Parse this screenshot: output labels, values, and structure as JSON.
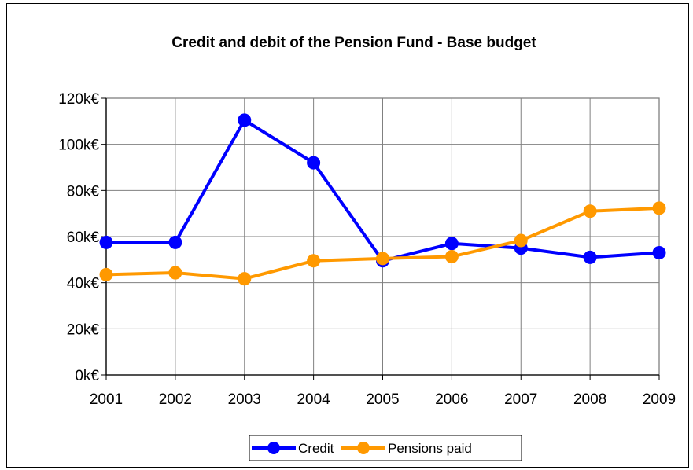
{
  "chart_data": {
    "type": "line",
    "title": "Credit and debit of the Pension Fund - Base budget",
    "xlabel": "",
    "ylabel": "",
    "categories": [
      "2001",
      "2002",
      "2003",
      "2004",
      "2005",
      "2006",
      "2007",
      "2008",
      "2009"
    ],
    "y_tick_labels": [
      "0k€",
      "20k€",
      "40k€",
      "60k€",
      "80k€",
      "100k€",
      "120k€"
    ],
    "y_ticks": [
      0,
      20,
      40,
      60,
      80,
      100,
      120
    ],
    "ylim": [
      0,
      120
    ],
    "grid": true,
    "legend_position": "bottom",
    "series": [
      {
        "name": "Credit",
        "color": "#0000ff",
        "values": [
          57.5,
          57.5,
          110.5,
          92,
          49.5,
          57,
          55,
          51,
          53
        ]
      },
      {
        "name": "Pensions paid",
        "color": "#ff9900",
        "values": [
          43.5,
          44.3,
          41.7,
          49.5,
          50.5,
          51.3,
          58.3,
          71,
          72.3
        ]
      }
    ]
  }
}
